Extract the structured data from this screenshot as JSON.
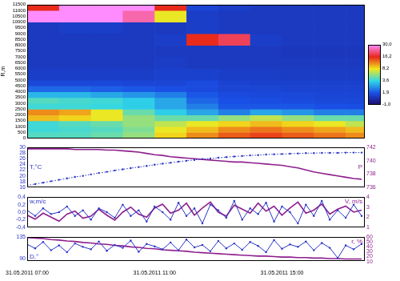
{
  "chart_data": [
    {
      "type": "heatmap",
      "ylabel": "R,m",
      "xlim": [
        7,
        17.6
      ],
      "ylim": [
        0,
        11500
      ],
      "yticks": [
        0,
        500,
        1000,
        1500,
        2000,
        2500,
        3000,
        3500,
        4000,
        4500,
        5000,
        5500,
        6000,
        6500,
        7000,
        7500,
        8000,
        8500,
        9000,
        9500,
        10000,
        10500,
        11000,
        11500
      ],
      "x_edges": [
        7,
        8,
        9,
        10,
        11,
        12,
        13,
        14,
        15,
        16,
        17,
        17.6
      ],
      "y_edges": [
        0,
        500,
        1000,
        1500,
        2000,
        2500,
        3000,
        3500,
        4000,
        4500,
        5000,
        6000,
        7000,
        8000,
        9000,
        10000,
        11000,
        11500
      ],
      "cells": [
        [
          4.5,
          4.5,
          5,
          6,
          9,
          12,
          14,
          15,
          14,
          13,
          12
        ],
        [
          4,
          4.2,
          4.5,
          5.5,
          8,
          10,
          12,
          13,
          12,
          11,
          10
        ],
        [
          4,
          4.5,
          5,
          6,
          7,
          8,
          9,
          10,
          9,
          8,
          7
        ],
        [
          10,
          9,
          8,
          6,
          5,
          5,
          6,
          7,
          6,
          5,
          5
        ],
        [
          12,
          11,
          8,
          5,
          3.5,
          3,
          2.5,
          3,
          2.8,
          2.5,
          2.5
        ],
        [
          4,
          4,
          3.8,
          3.5,
          3,
          2.5,
          2,
          2,
          2,
          1.9,
          1.8
        ],
        [
          4.5,
          4.2,
          4,
          3.5,
          3,
          2.2,
          1.9,
          1.8,
          1.7,
          1.6,
          1.6
        ],
        [
          3.2,
          3.2,
          3.0,
          2.8,
          2.5,
          2,
          1.7,
          1.6,
          1.6,
          1.5,
          1.5
        ],
        [
          2.2,
          2.2,
          2.1,
          2,
          1.9,
          1.7,
          1.5,
          1.5,
          1.4,
          1.4,
          1.4
        ],
        [
          1.6,
          1.6,
          1.6,
          1.5,
          1.5,
          1.7,
          1.4,
          1.3,
          1.3,
          1.3,
          1.3
        ],
        [
          1.2,
          1.2,
          1.2,
          1.2,
          1.3,
          1.3,
          1.2,
          1.2,
          1.1,
          1.1,
          1.1
        ],
        [
          1.0,
          1.0,
          1.0,
          1.0,
          1.1,
          1.0,
          1.0,
          1.0,
          1.0,
          1.0,
          1.0
        ],
        [
          1.0,
          1.0,
          1.0,
          1.0,
          1.0,
          1.0,
          1.0,
          1.0,
          0.9,
          0.9,
          0.9
        ],
        [
          1.0,
          1.0,
          1.0,
          1.0,
          1.2,
          16,
          20,
          1.2,
          1.0,
          1.0,
          1.0
        ],
        [
          1.0,
          1.2,
          1.2,
          1.0,
          1.0,
          1.2,
          1.0,
          1.0,
          1.0,
          1.0,
          1.0
        ],
        [
          30,
          30,
          30,
          25,
          8,
          1.2,
          1.0,
          1.0,
          1.0,
          1.0,
          1.0
        ],
        [
          16,
          30,
          30,
          30,
          16,
          1.5,
          1.2,
          1.0,
          1.0,
          1.0,
          1.0
        ]
      ],
      "colorbar": {
        "range": [
          -1,
          30
        ],
        "ticks": [
          {
            "value": -1,
            "label": "-1,0"
          },
          {
            "value": 1.9,
            "label": "1,9"
          },
          {
            "value": 3.6,
            "label": "3,6"
          },
          {
            "value": 8.2,
            "label": "8,2"
          },
          {
            "value": 16.2,
            "label": "16,2"
          },
          {
            "value": 30,
            "label": "30,0"
          }
        ],
        "colors": [
          "#1c0a6b",
          "#1a4fe6",
          "#2fd6e8",
          "#f2e81c",
          "#e8261a",
          "#ff8cff"
        ]
      },
      "tick_labels": "y",
      "grid": false
    },
    {
      "type": "line",
      "ylabel": "T,°C",
      "y2label": "P",
      "x": [
        7,
        7.25,
        7.5,
        7.75,
        8,
        8.25,
        8.5,
        8.75,
        9,
        9.25,
        9.5,
        9.75,
        10,
        10.25,
        10.5,
        10.75,
        11,
        11.25,
        11.5,
        11.75,
        12,
        12.25,
        12.5,
        12.75,
        13,
        13.25,
        13.5,
        13.75,
        14,
        14.25,
        14.5,
        14.75,
        15,
        15.25,
        15.5,
        15.75,
        16,
        16.25,
        16.5,
        16.75,
        17,
        17.25,
        17.5
      ],
      "xlim": [
        7,
        17.6
      ],
      "ylim": [
        16,
        30
      ],
      "yticks": [
        16,
        18,
        20,
        22,
        24,
        26,
        28,
        30
      ],
      "y2lim": [
        736,
        742
      ],
      "y2ticks": [
        736,
        738,
        740,
        742
      ],
      "series": [
        {
          "color": "#2b35c8",
          "line_style": "dotted",
          "marker": "circle",
          "values": [
            16.6,
            17.1,
            17.6,
            18.1,
            18.6,
            19.1,
            19.6,
            20.0,
            20.5,
            21.0,
            21.4,
            21.9,
            22.3,
            22.7,
            23.1,
            23.5,
            23.9,
            24.3,
            24.6,
            25.0,
            25.3,
            25.6,
            25.9,
            26.1,
            26.4,
            26.6,
            26.8,
            27.0,
            27.2,
            27.3,
            27.5,
            27.6,
            27.7,
            27.8,
            27.9,
            28.0,
            28.0,
            28.1,
            28.1,
            28.1,
            28.2,
            28.2,
            28.2
          ]
        },
        {
          "color": "#8e1f8e",
          "line_style": "solid",
          "axis": "y2",
          "values": [
            741.8,
            741.8,
            741.8,
            741.8,
            741.8,
            741.8,
            741.7,
            741.7,
            741.7,
            741.7,
            741.6,
            741.6,
            741.5,
            741.4,
            741.3,
            741.1,
            740.9,
            740.8,
            740.6,
            740.5,
            740.4,
            740.3,
            740.2,
            740.1,
            740.0,
            739.9,
            739.8,
            739.8,
            739.7,
            739.6,
            739.5,
            739.4,
            739.3,
            739.1,
            738.9,
            738.6,
            738.3,
            738.1,
            737.9,
            737.7,
            737.5,
            737.3,
            737.2
          ]
        }
      ],
      "tick_labels": "y",
      "grid": false
    },
    {
      "type": "line",
      "ylabel": "w,m/c",
      "y2label": "V, m/s",
      "x": [
        7,
        7.25,
        7.5,
        7.75,
        8,
        8.25,
        8.5,
        8.75,
        9,
        9.25,
        9.5,
        9.75,
        10,
        10.25,
        10.5,
        10.75,
        11,
        11.25,
        11.5,
        11.75,
        12,
        12.25,
        12.5,
        12.75,
        13,
        13.25,
        13.5,
        13.75,
        14,
        14.25,
        14.5,
        14.75,
        15,
        15.25,
        15.5,
        15.75,
        16,
        16.25,
        16.5,
        16.75,
        17,
        17.25,
        17.5
      ],
      "xlim": [
        7,
        17.6
      ],
      "ylim": [
        -0.4,
        0.4
      ],
      "yticks": [
        {
          "value": -0.4,
          "label": "-0,4"
        },
        {
          "value": -0.2,
          "label": "-0,2"
        },
        {
          "value": 0,
          "label": "0,0"
        },
        {
          "value": 0.2,
          "label": "0,2"
        },
        {
          "value": 0.4,
          "label": "0,4"
        }
      ],
      "y2lim": [
        1,
        4
      ],
      "y2ticks": [
        1,
        2,
        3,
        4
      ],
      "series": [
        {
          "color": "#2b35c8",
          "line_style": "solid",
          "marker": "circle",
          "values": [
            0.05,
            -0.1,
            0.1,
            -0.05,
            0.0,
            0.15,
            -0.1,
            0.05,
            -0.2,
            0.1,
            0.0,
            -0.15,
            0.2,
            -0.1,
            0.05,
            -0.25,
            0.15,
            0.0,
            -0.2,
            0.25,
            -0.1,
            0.1,
            -0.3,
            0.2,
            0.05,
            -0.15,
            0.3,
            -0.2,
            0.1,
            -0.05,
            0.25,
            -0.25,
            0.15,
            0.0,
            -0.3,
            0.2,
            -0.1,
            0.3,
            -0.2,
            0.05,
            -0.15,
            0.2,
            -0.1
          ]
        },
        {
          "color": "#8e1f8e",
          "line_style": "solid",
          "axis": "y2",
          "values": [
            2.2,
            1.8,
            2.4,
            2.0,
            1.6,
            2.3,
            2.6,
            1.9,
            2.1,
            2.8,
            2.2,
            1.7,
            2.5,
            3.0,
            2.3,
            2.0,
            2.9,
            3.3,
            2.4,
            2.7,
            3.4,
            2.2,
            2.9,
            3.5,
            2.5,
            2.1,
            3.2,
            2.8,
            2.4,
            3.4,
            2.6,
            3.1,
            2.2,
            2.9,
            3.5,
            2.4,
            2.7,
            3.3,
            2.3,
            2.8,
            3.1,
            2.5,
            2.7
          ]
        }
      ],
      "tick_labels": "y",
      "grid": false
    },
    {
      "type": "line",
      "ylabel": "D,°",
      "y2label": "r, %",
      "x": [
        7,
        7.25,
        7.5,
        7.75,
        8,
        8.25,
        8.5,
        8.75,
        9,
        9.25,
        9.5,
        9.75,
        10,
        10.25,
        10.5,
        10.75,
        11,
        11.25,
        11.5,
        11.75,
        12,
        12.25,
        12.5,
        12.75,
        13,
        13.25,
        13.5,
        13.75,
        14,
        14.25,
        14.5,
        14.75,
        15,
        15.25,
        15.5,
        15.75,
        16,
        16.25,
        16.5,
        16.75,
        17,
        17.25,
        17.5
      ],
      "xlim": [
        7,
        17.6
      ],
      "xticks": [
        {
          "value": 7,
          "label": "31.05.2011 07:00"
        },
        {
          "value": 11,
          "label": "31.05.2011 11:00"
        },
        {
          "value": 15,
          "label": "31.05.2011 15:00"
        }
      ],
      "ylim": [
        85,
        135
      ],
      "yticks": [
        90,
        135
      ],
      "y2lim": [
        10,
        60
      ],
      "y2ticks": [
        10,
        20,
        30,
        40,
        50,
        60
      ],
      "series": [
        {
          "color": "#2b35c8",
          "line_style": "solid",
          "marker": "circle",
          "values": [
            120,
            112,
            125,
            108,
            118,
            104,
            122,
            115,
            110,
            126,
            107,
            119,
            113,
            128,
            105,
            121,
            116,
            110,
            124,
            108,
            130,
            114,
            119,
            106,
            127,
            112,
            122,
            109,
            125,
            117,
            104,
            129,
            111,
            120,
            115,
            126,
            108,
            123,
            113,
            92,
            118,
            110,
            121
          ]
        },
        {
          "color": "#8e1f8e",
          "line_style": "solid",
          "axis": "y2",
          "values": [
            59,
            58,
            57,
            55,
            54,
            52,
            51,
            49,
            48,
            46,
            45,
            43,
            42,
            40,
            39,
            37,
            36,
            34,
            33,
            32,
            31,
            29,
            28,
            27,
            26,
            25,
            24,
            23,
            22,
            21,
            21,
            20,
            19,
            19,
            18,
            18,
            17,
            17,
            16,
            16,
            15,
            15,
            15
          ]
        }
      ],
      "grid": false
    }
  ]
}
